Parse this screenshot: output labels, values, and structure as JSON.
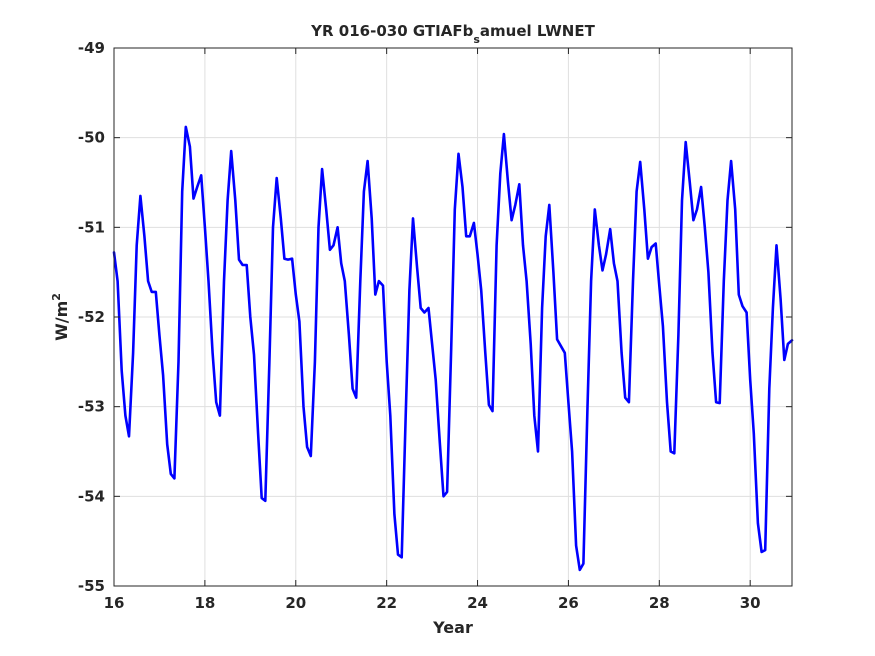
{
  "chart_data": {
    "type": "line",
    "title_main": "YR 016-030 GTIAFb",
    "title_sub": "s",
    "title_rest": "amuel LWNET",
    "xlabel": "Year",
    "ylabel_main": "W/m",
    "ylabel_sup": "2",
    "xlim": [
      16,
      30.92
    ],
    "ylim": [
      -55,
      -49
    ],
    "xticks": [
      16,
      18,
      20,
      22,
      24,
      26,
      28,
      30
    ],
    "xtick_labels": [
      "16",
      "18",
      "20",
      "22",
      "24",
      "26",
      "28",
      "30"
    ],
    "yticks": [
      -55,
      -54,
      -53,
      -52,
      -51,
      -50,
      -49
    ],
    "ytick_labels": [
      "-55",
      "-54",
      "-53",
      "-52",
      "-51",
      "-50",
      "-49"
    ],
    "grid": true,
    "series": [
      {
        "color": "#0000ff",
        "x": [
          16.0,
          16.08,
          16.17,
          16.25,
          16.33,
          16.42,
          16.5,
          16.58,
          16.67,
          16.75,
          16.83,
          16.92,
          17.0,
          17.08,
          17.17,
          17.25,
          17.33,
          17.42,
          17.5,
          17.58,
          17.67,
          17.75,
          17.83,
          17.92,
          18.0,
          18.08,
          18.17,
          18.25,
          18.33,
          18.42,
          18.5,
          18.58,
          18.67,
          18.75,
          18.83,
          18.92,
          19.0,
          19.08,
          19.17,
          19.25,
          19.33,
          19.42,
          19.5,
          19.58,
          19.67,
          19.75,
          19.83,
          19.92,
          20.0,
          20.08,
          20.17,
          20.25,
          20.33,
          20.42,
          20.5,
          20.58,
          20.67,
          20.75,
          20.83,
          20.92,
          21.0,
          21.08,
          21.17,
          21.25,
          21.33,
          21.42,
          21.5,
          21.58,
          21.67,
          21.75,
          21.83,
          21.92,
          22.0,
          22.08,
          22.17,
          22.25,
          22.33,
          22.42,
          22.5,
          22.58,
          22.67,
          22.75,
          22.83,
          22.92,
          23.0,
          23.08,
          23.17,
          23.25,
          23.33,
          23.42,
          23.5,
          23.58,
          23.67,
          23.75,
          23.83,
          23.92,
          24.0,
          24.08,
          24.17,
          24.25,
          24.33,
          24.42,
          24.5,
          24.58,
          24.67,
          24.75,
          24.83,
          24.92,
          25.0,
          25.08,
          25.17,
          25.25,
          25.33,
          25.42,
          25.5,
          25.58,
          25.67,
          25.75,
          25.83,
          25.92,
          26.0,
          26.08,
          26.17,
          26.25,
          26.33,
          26.42,
          26.5,
          26.58,
          26.67,
          26.75,
          26.83,
          26.92,
          27.0,
          27.08,
          27.17,
          27.25,
          27.33,
          27.42,
          27.5,
          27.58,
          27.67,
          27.75,
          27.83,
          27.92,
          28.0,
          28.08,
          28.17,
          28.25,
          28.33,
          28.42,
          28.5,
          28.58,
          28.67,
          28.75,
          28.83,
          28.92,
          29.0,
          29.08,
          29.17,
          29.25,
          29.33,
          29.42,
          29.5,
          29.58,
          29.67,
          29.75,
          29.83,
          29.92,
          30.0,
          30.08,
          30.17,
          30.25,
          30.33,
          30.42,
          30.5,
          30.58,
          30.67,
          30.75,
          30.83,
          30.92
        ],
        "y": [
          -51.28,
          -51.6,
          -52.6,
          -53.1,
          -53.33,
          -52.4,
          -51.2,
          -50.65,
          -51.1,
          -51.6,
          -51.72,
          -51.72,
          -52.2,
          -52.65,
          -53.42,
          -53.75,
          -53.8,
          -52.5,
          -50.6,
          -49.88,
          -50.1,
          -50.68,
          -50.55,
          -50.42,
          -51.0,
          -51.6,
          -52.4,
          -52.95,
          -53.1,
          -51.6,
          -50.7,
          -50.15,
          -50.7,
          -51.36,
          -51.42,
          -51.42,
          -52.0,
          -52.42,
          -53.3,
          -54.02,
          -54.05,
          -52.5,
          -51.0,
          -50.45,
          -50.9,
          -51.35,
          -51.36,
          -51.35,
          -51.75,
          -52.05,
          -53.0,
          -53.45,
          -53.55,
          -52.5,
          -51.0,
          -50.35,
          -50.8,
          -51.25,
          -51.2,
          -51.0,
          -51.4,
          -51.6,
          -52.2,
          -52.8,
          -52.9,
          -51.6,
          -50.6,
          -50.26,
          -50.9,
          -51.75,
          -51.6,
          -51.65,
          -52.5,
          -53.1,
          -54.2,
          -54.65,
          -54.68,
          -53.1,
          -51.7,
          -50.9,
          -51.45,
          -51.9,
          -51.95,
          -51.9,
          -52.3,
          -52.7,
          -53.4,
          -54.0,
          -53.95,
          -52.35,
          -50.8,
          -50.18,
          -50.55,
          -51.1,
          -51.1,
          -50.95,
          -51.3,
          -51.7,
          -52.4,
          -52.98,
          -53.05,
          -51.2,
          -50.4,
          -49.96,
          -50.5,
          -50.92,
          -50.75,
          -50.52,
          -51.2,
          -51.6,
          -52.3,
          -53.1,
          -53.5,
          -51.9,
          -51.1,
          -50.75,
          -51.5,
          -52.25,
          -52.32,
          -52.4,
          -52.95,
          -53.5,
          -54.55,
          -54.82,
          -54.75,
          -53.0,
          -51.6,
          -50.8,
          -51.2,
          -51.48,
          -51.3,
          -51.02,
          -51.4,
          -51.6,
          -52.4,
          -52.9,
          -52.95,
          -51.6,
          -50.6,
          -50.27,
          -50.8,
          -51.35,
          -51.22,
          -51.18,
          -51.65,
          -52.1,
          -52.95,
          -53.5,
          -53.52,
          -52.2,
          -50.7,
          -50.05,
          -50.5,
          -50.92,
          -50.8,
          -50.55,
          -51.0,
          -51.5,
          -52.4,
          -52.95,
          -52.96,
          -51.6,
          -50.7,
          -50.26,
          -50.8,
          -51.75,
          -51.88,
          -51.95,
          -52.7,
          -53.3,
          -54.3,
          -54.62,
          -54.6,
          -52.8,
          -51.9,
          -51.2,
          -51.8,
          -52.48,
          -52.3,
          -52.26
        ]
      }
    ]
  }
}
